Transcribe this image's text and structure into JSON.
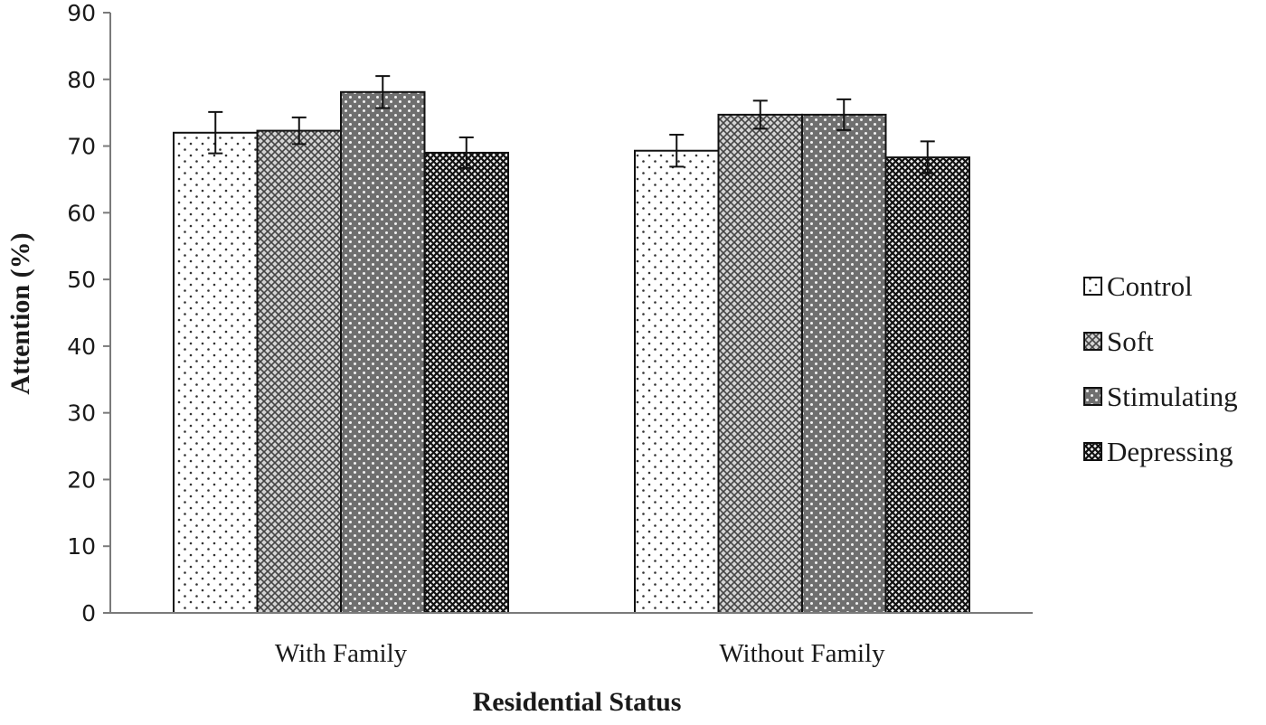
{
  "chart_data": {
    "type": "bar",
    "title": "",
    "xlabel": "Residential Status",
    "ylabel": "Attention (%)",
    "ylim": [
      0,
      90
    ],
    "yticks": [
      0,
      10,
      20,
      30,
      40,
      50,
      60,
      70,
      80,
      90
    ],
    "categories": [
      "With Family",
      "Without Family"
    ],
    "series": [
      {
        "name": "Control",
        "values": [
          72.0,
          69.3
        ],
        "errors": [
          3.1,
          2.4
        ],
        "pattern": "sparse-dots"
      },
      {
        "name": "Soft",
        "values": [
          72.3,
          74.7
        ],
        "errors": [
          2.0,
          2.1
        ],
        "pattern": "crosshatch-light"
      },
      {
        "name": "Stimulating",
        "values": [
          78.1,
          74.7
        ],
        "errors": [
          2.4,
          2.3
        ],
        "pattern": "dark-dots"
      },
      {
        "name": "Depressing",
        "values": [
          69.0,
          68.3
        ],
        "errors": [
          2.3,
          2.4
        ],
        "pattern": "crosshatch-dark"
      }
    ],
    "grid": false,
    "error_bars": true,
    "legend_position": "right"
  }
}
